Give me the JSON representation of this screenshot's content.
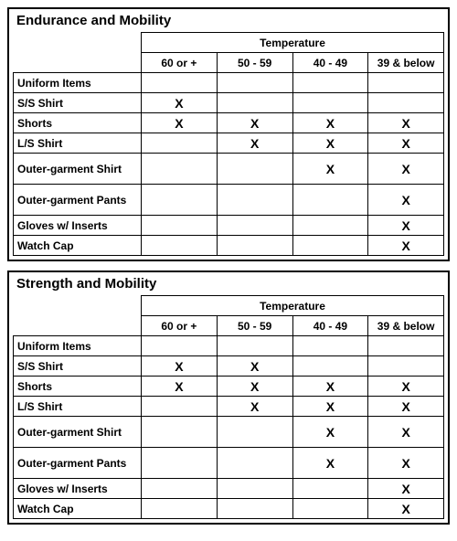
{
  "mark_char": "X",
  "temperature_label": "Temperature",
  "col_headers": [
    "60 or +",
    "50 - 59",
    "40 - 49",
    "39 & below"
  ],
  "tables": [
    {
      "title": "Endurance and Mobility",
      "rows": [
        {
          "label": "Uniform Items",
          "tall": false,
          "marks": [
            false,
            false,
            false,
            false
          ]
        },
        {
          "label": "S/S Shirt",
          "tall": false,
          "marks": [
            true,
            false,
            false,
            false
          ]
        },
        {
          "label": "Shorts",
          "tall": false,
          "marks": [
            true,
            true,
            true,
            true
          ]
        },
        {
          "label": "L/S Shirt",
          "tall": false,
          "marks": [
            false,
            true,
            true,
            true
          ]
        },
        {
          "label": "Outer-garment Shirt",
          "tall": true,
          "marks": [
            false,
            false,
            true,
            true
          ]
        },
        {
          "label": "Outer-garment Pants",
          "tall": true,
          "marks": [
            false,
            false,
            false,
            true
          ]
        },
        {
          "label": "Gloves w/ Inserts",
          "tall": false,
          "marks": [
            false,
            false,
            false,
            true
          ]
        },
        {
          "label": "Watch Cap",
          "tall": false,
          "marks": [
            false,
            false,
            false,
            true
          ]
        }
      ]
    },
    {
      "title": "Strength and Mobility",
      "rows": [
        {
          "label": "Uniform Items",
          "tall": false,
          "marks": [
            false,
            false,
            false,
            false
          ]
        },
        {
          "label": "S/S Shirt",
          "tall": false,
          "marks": [
            true,
            true,
            false,
            false
          ]
        },
        {
          "label": "Shorts",
          "tall": false,
          "marks": [
            true,
            true,
            true,
            true
          ]
        },
        {
          "label": "L/S Shirt",
          "tall": false,
          "marks": [
            false,
            true,
            true,
            true
          ]
        },
        {
          "label": "Outer-garment Shirt",
          "tall": true,
          "marks": [
            false,
            false,
            true,
            true
          ]
        },
        {
          "label": "Outer-garment Pants",
          "tall": true,
          "marks": [
            false,
            false,
            true,
            true
          ]
        },
        {
          "label": "Gloves w/ Inserts",
          "tall": false,
          "marks": [
            false,
            false,
            false,
            true
          ]
        },
        {
          "label": "Watch Cap",
          "tall": false,
          "marks": [
            false,
            false,
            false,
            true
          ]
        }
      ]
    }
  ]
}
